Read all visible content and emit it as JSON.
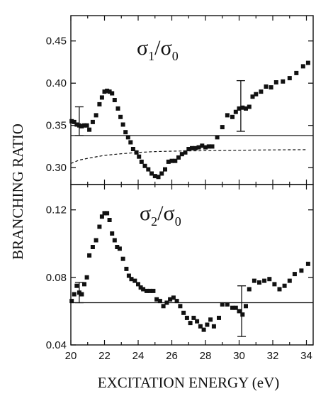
{
  "chart_data": {
    "type": "scatter",
    "xlabel": "EXCITATION ENERGY  (eV)",
    "ylabel": "BRANCHING RATIO",
    "xlim": [
      20,
      34.4
    ],
    "xticks": [
      "20",
      "22",
      "24",
      "26",
      "28",
      "30",
      "32",
      "34"
    ],
    "grid": false,
    "panels": [
      {
        "id": "top",
        "title_main": "σ",
        "title_sub1": "1",
        "title_slash": "/σ",
        "title_sub2": "0",
        "ylim": [
          0.28,
          0.48
        ],
        "yticks": [
          "0.30",
          "0.35",
          "0.40",
          "0.45"
        ],
        "series": [
          {
            "marker": "square",
            "x": [
              20.05,
              20.2,
              20.35,
              20.5,
              20.65,
              20.8,
              20.95,
              21.1,
              21.3,
              21.5,
              21.7,
              21.85,
              22.0,
              22.15,
              22.3,
              22.45,
              22.6,
              22.8,
              22.95,
              23.1,
              23.25,
              23.4,
              23.55,
              23.7,
              23.9,
              24.05,
              24.2,
              24.4,
              24.6,
              24.8,
              25.0,
              25.2,
              25.4,
              25.6,
              25.8,
              26.0,
              26.2,
              26.4,
              26.6,
              26.8,
              27.0,
              27.2,
              27.4,
              27.6,
              27.8,
              28.0,
              28.2,
              28.4,
              28.7,
              29.0,
              29.3,
              29.6,
              29.8,
              30.0,
              30.2,
              30.4,
              30.6,
              30.8,
              31.0,
              31.3,
              31.6,
              31.9,
              32.2,
              32.6,
              33.0,
              33.4,
              33.8,
              34.1
            ],
            "y": [
              0.355,
              0.354,
              0.351,
              0.35,
              0.349,
              0.35,
              0.35,
              0.345,
              0.354,
              0.362,
              0.375,
              0.383,
              0.39,
              0.391,
              0.39,
              0.388,
              0.38,
              0.37,
              0.36,
              0.351,
              0.342,
              0.336,
              0.33,
              0.322,
              0.318,
              0.313,
              0.307,
              0.302,
              0.298,
              0.293,
              0.29,
              0.289,
              0.293,
              0.298,
              0.307,
              0.308,
              0.308,
              0.312,
              0.316,
              0.318,
              0.322,
              0.323,
              0.323,
              0.324,
              0.326,
              0.324,
              0.325,
              0.325,
              0.336,
              0.348,
              0.362,
              0.36,
              0.366,
              0.37,
              0.371,
              0.37,
              0.372,
              0.384,
              0.387,
              0.39,
              0.396,
              0.395,
              0.401,
              0.402,
              0.406,
              0.412,
              0.42,
              0.424
            ]
          }
        ],
        "reference_lines": [
          {
            "style": "solid",
            "x": [
              20,
              34.4
            ],
            "y": [
              0.338,
              0.338
            ]
          },
          {
            "style": "dashed",
            "x": [
              20,
              20.5,
              21,
              22,
              23,
              24,
              25,
              26,
              27,
              28,
              29,
              30,
              31,
              32,
              33,
              34
            ],
            "y": [
              0.305,
              0.309,
              0.311,
              0.3145,
              0.3165,
              0.318,
              0.319,
              0.3195,
              0.3198,
              0.32,
              0.3203,
              0.3206,
              0.3208,
              0.321,
              0.3212,
              0.3213
            ]
          }
        ],
        "error_bars": [
          {
            "x": 20.5,
            "ymin": 0.338,
            "ymax": 0.372
          },
          {
            "x": 30.1,
            "ymin": 0.343,
            "ymax": 0.403
          }
        ]
      },
      {
        "id": "bottom",
        "title_main": "σ",
        "title_sub1": "2",
        "title_slash": "/σ",
        "title_sub2": "0",
        "ylim": [
          0.04,
          0.135
        ],
        "yticks": [
          "0.04",
          "0.08",
          "0.12"
        ],
        "series": [
          {
            "marker": "square",
            "x": [
              20.05,
              20.2,
              20.35,
              20.5,
              20.65,
              20.8,
              20.95,
              21.1,
              21.3,
              21.5,
              21.7,
              21.85,
              22.0,
              22.15,
              22.3,
              22.45,
              22.6,
              22.75,
              22.9,
              23.1,
              23.3,
              23.45,
              23.6,
              23.8,
              24.0,
              24.15,
              24.3,
              24.5,
              24.7,
              24.9,
              25.1,
              25.3,
              25.5,
              25.7,
              25.9,
              26.1,
              26.3,
              26.5,
              26.7,
              26.9,
              27.1,
              27.3,
              27.5,
              27.7,
              27.9,
              28.1,
              28.3,
              28.5,
              28.8,
              29.0,
              29.3,
              29.6,
              29.8,
              30.0,
              30.2,
              30.4,
              30.6,
              30.9,
              31.2,
              31.5,
              31.8,
              32.1,
              32.4,
              32.7,
              33.0,
              33.3,
              33.7,
              34.1
            ],
            "y": [
              0.066,
              0.07,
              0.075,
              0.071,
              0.07,
              0.076,
              0.08,
              0.093,
              0.098,
              0.102,
              0.11,
              0.116,
              0.118,
              0.118,
              0.114,
              0.106,
              0.102,
              0.098,
              0.097,
              0.091,
              0.085,
              0.081,
              0.079,
              0.078,
              0.076,
              0.074,
              0.073,
              0.072,
              0.072,
              0.072,
              0.067,
              0.066,
              0.063,
              0.065,
              0.067,
              0.068,
              0.066,
              0.063,
              0.059,
              0.056,
              0.053,
              0.056,
              0.054,
              0.051,
              0.049,
              0.052,
              0.055,
              0.051,
              0.056,
              0.064,
              0.064,
              0.062,
              0.062,
              0.06,
              0.058,
              0.063,
              0.073,
              0.078,
              0.077,
              0.078,
              0.079,
              0.076,
              0.073,
              0.075,
              0.078,
              0.082,
              0.084,
              0.088
            ]
          }
        ],
        "reference_lines": [
          {
            "style": "solid",
            "x": [
              20,
              34.4
            ],
            "y": [
              0.065,
              0.065
            ]
          }
        ],
        "error_bars": [
          {
            "x": 20.5,
            "ymin": 0.065,
            "ymax": 0.077
          },
          {
            "x": 30.15,
            "ymin": 0.045,
            "ymax": 0.075
          }
        ]
      }
    ]
  }
}
